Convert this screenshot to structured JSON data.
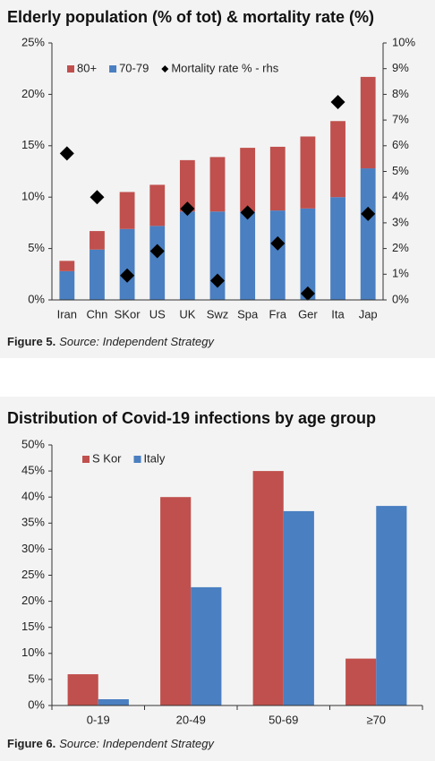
{
  "chart_data": [
    {
      "type": "bar",
      "stacked": true,
      "title": "Elderly population (% of tot) & mortality rate (%)",
      "caption_label": "Figure 5.",
      "caption_source": "Source: Independent Strategy",
      "categories": [
        "Iran",
        "Chn",
        "SKor",
        "US",
        "UK",
        "Swz",
        "Spa",
        "Fra",
        "Ger",
        "Ita",
        "Jap"
      ],
      "series": [
        {
          "name": "70-79",
          "color": "#4a7fc1",
          "values": [
            2.8,
            4.9,
            6.9,
            7.2,
            8.6,
            8.6,
            8.6,
            8.7,
            8.9,
            10.0,
            12.8
          ]
        },
        {
          "name": "80+",
          "color": "#c0504d",
          "values": [
            1.0,
            1.8,
            3.6,
            4.0,
            5.0,
            5.3,
            6.2,
            6.2,
            7.0,
            7.4,
            8.9
          ]
        },
        {
          "name": "Mortality rate % - rhs",
          "color": "#000000",
          "type": "scatter",
          "axis": "y2",
          "values": [
            5.7,
            4.0,
            0.95,
            1.9,
            3.55,
            0.75,
            3.4,
            2.2,
            0.25,
            7.7,
            3.35
          ]
        }
      ],
      "legend_order": [
        1,
        0,
        2
      ],
      "ylim": [
        0,
        25
      ],
      "yticks": [
        {
          "value": 0,
          "label": "0%"
        },
        {
          "value": 5,
          "label": "5%"
        },
        {
          "value": 10,
          "label": "10%"
        },
        {
          "value": 15,
          "label": "15%"
        },
        {
          "value": 20,
          "label": "20%"
        },
        {
          "value": 25,
          "label": "25%"
        }
      ],
      "y2lim": [
        0,
        10
      ],
      "y2ticks": [
        {
          "value": 0,
          "label": "0%"
        },
        {
          "value": 1,
          "label": "1%"
        },
        {
          "value": 2,
          "label": "2%"
        },
        {
          "value": 3,
          "label": "3%"
        },
        {
          "value": 4,
          "label": "4%"
        },
        {
          "value": 5,
          "label": "5%"
        },
        {
          "value": 6,
          "label": "6%"
        },
        {
          "value": 7,
          "label": "7%"
        },
        {
          "value": 8,
          "label": "8%"
        },
        {
          "value": 9,
          "label": "9%"
        },
        {
          "value": 10,
          "label": "10%"
        }
      ]
    },
    {
      "type": "bar",
      "stacked": false,
      "title": "Distribution of Covid-19 infections by age group",
      "caption_label": "Figure 6.",
      "caption_source": "Source: Independent Strategy",
      "categories": [
        "0-19",
        "20-49",
        "50-69",
        "≥70"
      ],
      "series": [
        {
          "name": "S Kor",
          "color": "#c0504d",
          "values": [
            6.0,
            40.0,
            45.0,
            9.0
          ]
        },
        {
          "name": "Italy",
          "color": "#4a7fc1",
          "values": [
            1.2,
            22.7,
            37.3,
            38.3
          ]
        }
      ],
      "legend_order": [
        0,
        1
      ],
      "ylim": [
        0,
        50
      ],
      "yticks": [
        {
          "value": 0,
          "label": "0%"
        },
        {
          "value": 5,
          "label": "5%"
        },
        {
          "value": 10,
          "label": "10%"
        },
        {
          "value": 15,
          "label": "15%"
        },
        {
          "value": 20,
          "label": "20%"
        },
        {
          "value": 25,
          "label": "25%"
        },
        {
          "value": 30,
          "label": "30%"
        },
        {
          "value": 35,
          "label": "35%"
        },
        {
          "value": 40,
          "label": "40%"
        },
        {
          "value": 45,
          "label": "45%"
        },
        {
          "value": 50,
          "label": "50%"
        }
      ]
    }
  ]
}
